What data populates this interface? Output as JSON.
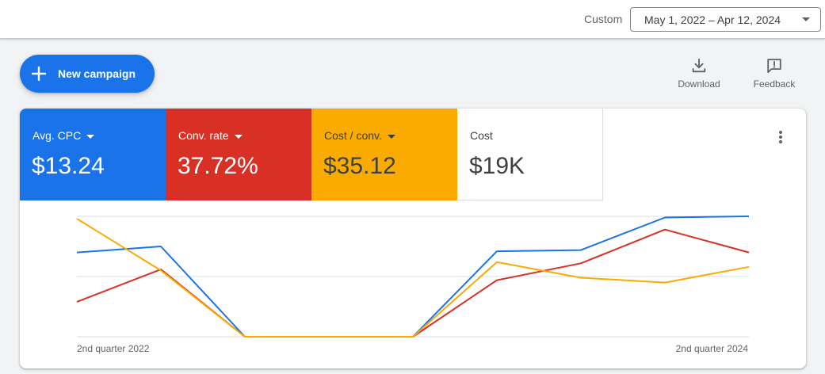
{
  "header": {
    "range_label": "Custom",
    "date_range": "May 1, 2022 – Apr 12, 2024"
  },
  "actions": {
    "new_campaign": "New campaign",
    "download": "Download",
    "feedback": "Feedback"
  },
  "metrics": [
    {
      "name": "Avg. CPC",
      "value": "$13.24",
      "color": "#1a73e8",
      "has_dropdown": true
    },
    {
      "name": "Conv. rate",
      "value": "37.72%",
      "color": "#d93025",
      "has_dropdown": true
    },
    {
      "name": "Cost / conv.",
      "value": "$35.12",
      "color": "#f9ab00",
      "has_dropdown": true
    },
    {
      "name": "Cost",
      "value": "$19K",
      "color": "#ffffff",
      "has_dropdown": false
    }
  ],
  "icons": [
    "plus-icon",
    "download-icon",
    "feedback-icon",
    "more-vert-icon",
    "dropdown-caret-icon"
  ],
  "chart_data": {
    "type": "line",
    "x_axis": {
      "first_tick": "2nd quarter 2022",
      "last_tick": "2nd quarter 2024"
    },
    "y_axis": {
      "labels": "none",
      "gridlines": 3,
      "scale": "relative (0 = bottom gridline, 1 = top gridline)"
    },
    "legend": "none (series identified by metric tile colors)",
    "points_per_series": 9,
    "series": [
      {
        "color": "#1a73e8",
        "values": [
          0.7,
          0.75,
          0.0,
          0.0,
          0.0,
          0.71,
          0.72,
          0.99,
          1.0
        ]
      },
      {
        "color": "#d93025",
        "values": [
          0.29,
          0.56,
          0.0,
          0.0,
          0.0,
          0.47,
          0.61,
          0.89,
          0.7
        ]
      },
      {
        "color": "#f9ab00",
        "values": [
          0.98,
          0.55,
          0.0,
          0.0,
          0.0,
          0.62,
          0.49,
          0.45,
          0.58
        ]
      }
    ]
  }
}
